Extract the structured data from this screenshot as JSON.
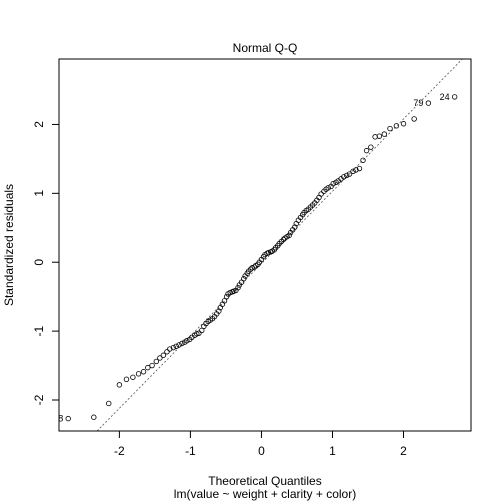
{
  "chart_data": {
    "type": "scatter",
    "title": "Normal Q-Q",
    "xlabel": "Theoretical Quantiles",
    "subtitle": "lm(value ~ weight + clarity + color)",
    "ylabel": "Standardized residuals",
    "xlim": [
      -2.85,
      2.95
    ],
    "ylim": [
      -2.45,
      2.95
    ],
    "xticks": [
      -2,
      -1,
      0,
      1,
      2
    ],
    "yticks": [
      -2,
      -1,
      0,
      1,
      2
    ],
    "grid": false,
    "reference_line": {
      "slope": 1.05,
      "intercept": -0.02,
      "style": "dashed"
    },
    "labeled_points": [
      {
        "label": "8",
        "x": -2.72,
        "y": -2.27
      },
      {
        "label": "79",
        "x": 2.35,
        "y": 2.31
      },
      {
        "label": "24",
        "x": 2.72,
        "y": 2.4
      }
    ],
    "points": [
      [
        -2.72,
        -2.27
      ],
      [
        -2.36,
        -2.25
      ],
      [
        -2.15,
        -2.05
      ],
      [
        -2.0,
        -1.78
      ],
      [
        -1.9,
        -1.7
      ],
      [
        -1.81,
        -1.67
      ],
      [
        -1.73,
        -1.62
      ],
      [
        -1.66,
        -1.59
      ],
      [
        -1.6,
        -1.53
      ],
      [
        -1.54,
        -1.5
      ],
      [
        -1.48,
        -1.44
      ],
      [
        -1.43,
        -1.39
      ],
      [
        -1.38,
        -1.35
      ],
      [
        -1.33,
        -1.3
      ],
      [
        -1.29,
        -1.26
      ],
      [
        -1.24,
        -1.24
      ],
      [
        -1.2,
        -1.22
      ],
      [
        -1.16,
        -1.2
      ],
      [
        -1.12,
        -1.18
      ],
      [
        -1.08,
        -1.16
      ],
      [
        -1.05,
        -1.14
      ],
      [
        -1.01,
        -1.12
      ],
      [
        -0.98,
        -1.09
      ],
      [
        -0.94,
        -1.06
      ],
      [
        -0.91,
        -1.04
      ],
      [
        -0.88,
        -1.03
      ],
      [
        -0.84,
        -0.99
      ],
      [
        -0.81,
        -0.93
      ],
      [
        -0.78,
        -0.89
      ],
      [
        -0.75,
        -0.86
      ],
      [
        -0.72,
        -0.84
      ],
      [
        -0.69,
        -0.82
      ],
      [
        -0.66,
        -0.79
      ],
      [
        -0.63,
        -0.75
      ],
      [
        -0.6,
        -0.71
      ],
      [
        -0.58,
        -0.66
      ],
      [
        -0.55,
        -0.61
      ],
      [
        -0.52,
        -0.56
      ],
      [
        -0.49,
        -0.5
      ],
      [
        -0.47,
        -0.46
      ],
      [
        -0.44,
        -0.44
      ],
      [
        -0.41,
        -0.43
      ],
      [
        -0.39,
        -0.42
      ],
      [
        -0.36,
        -0.41
      ],
      [
        -0.33,
        -0.37
      ],
      [
        -0.31,
        -0.33
      ],
      [
        -0.28,
        -0.29
      ],
      [
        -0.25,
        -0.24
      ],
      [
        -0.23,
        -0.2
      ],
      [
        -0.2,
        -0.16
      ],
      [
        -0.18,
        -0.13
      ],
      [
        -0.15,
        -0.1
      ],
      [
        -0.13,
        -0.08
      ],
      [
        -0.1,
        -0.07
      ],
      [
        -0.08,
        -0.05
      ],
      [
        -0.05,
        -0.03
      ],
      [
        -0.03,
        0.0
      ],
      [
        0.0,
        0.04
      ],
      [
        0.03,
        0.08
      ],
      [
        0.05,
        0.11
      ],
      [
        0.08,
        0.13
      ],
      [
        0.1,
        0.14
      ],
      [
        0.13,
        0.15
      ],
      [
        0.15,
        0.16
      ],
      [
        0.18,
        0.18
      ],
      [
        0.2,
        0.21
      ],
      [
        0.23,
        0.24
      ],
      [
        0.25,
        0.27
      ],
      [
        0.28,
        0.3
      ],
      [
        0.31,
        0.33
      ],
      [
        0.33,
        0.35
      ],
      [
        0.36,
        0.37
      ],
      [
        0.39,
        0.39
      ],
      [
        0.41,
        0.43
      ],
      [
        0.44,
        0.47
      ],
      [
        0.47,
        0.51
      ],
      [
        0.49,
        0.56
      ],
      [
        0.52,
        0.61
      ],
      [
        0.55,
        0.65
      ],
      [
        0.58,
        0.69
      ],
      [
        0.6,
        0.72
      ],
      [
        0.63,
        0.75
      ],
      [
        0.66,
        0.77
      ],
      [
        0.69,
        0.8
      ],
      [
        0.72,
        0.83
      ],
      [
        0.75,
        0.86
      ],
      [
        0.78,
        0.9
      ],
      [
        0.81,
        0.94
      ],
      [
        0.84,
        0.99
      ],
      [
        0.88,
        1.03
      ],
      [
        0.91,
        1.06
      ],
      [
        0.94,
        1.08
      ],
      [
        0.98,
        1.1
      ],
      [
        1.01,
        1.14
      ],
      [
        1.05,
        1.16
      ],
      [
        1.08,
        1.18
      ],
      [
        1.12,
        1.21
      ],
      [
        1.16,
        1.24
      ],
      [
        1.2,
        1.26
      ],
      [
        1.24,
        1.28
      ],
      [
        1.29,
        1.32
      ],
      [
        1.33,
        1.34
      ],
      [
        1.38,
        1.36
      ],
      [
        1.43,
        1.48
      ],
      [
        1.48,
        1.62
      ],
      [
        1.54,
        1.67
      ],
      [
        1.6,
        1.82
      ],
      [
        1.66,
        1.83
      ],
      [
        1.73,
        1.86
      ],
      [
        1.81,
        1.94
      ],
      [
        1.9,
        1.98
      ],
      [
        2.0,
        2.01
      ],
      [
        2.15,
        2.08
      ],
      [
        2.35,
        2.31
      ],
      [
        2.72,
        2.4
      ]
    ]
  }
}
